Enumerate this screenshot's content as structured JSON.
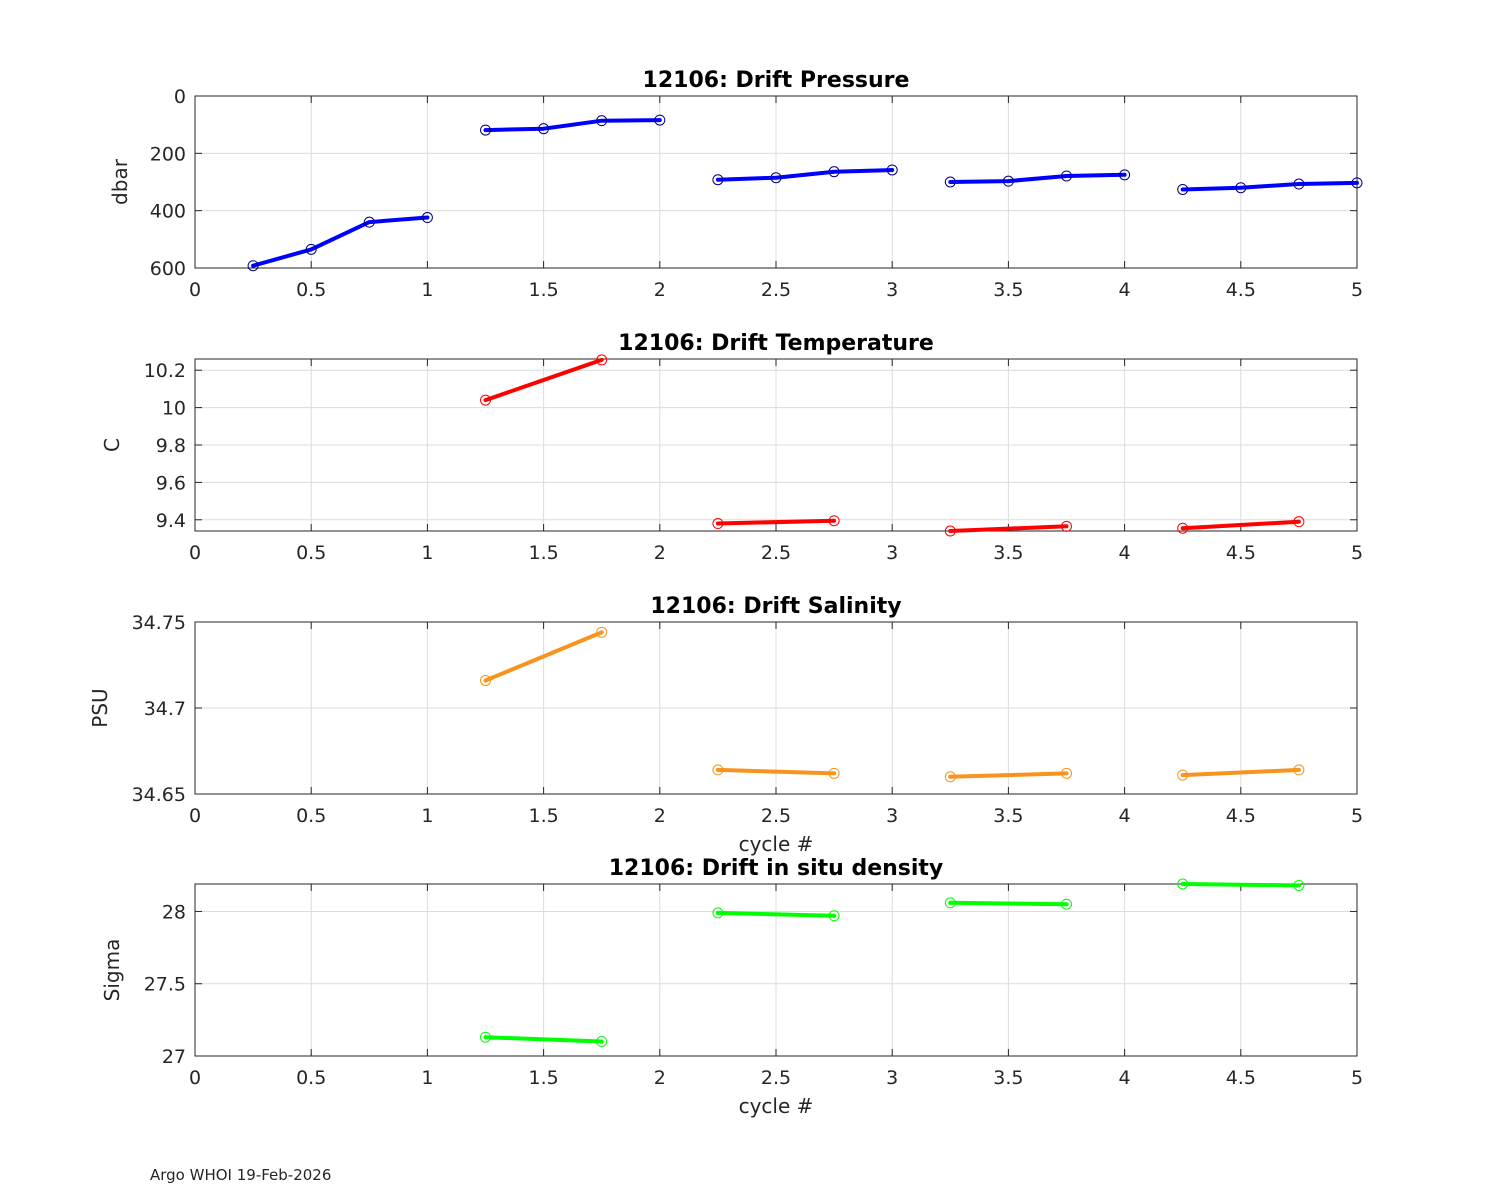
{
  "footer": "Argo WHOI 19-Feb-2026",
  "chart_data": [
    {
      "type": "line",
      "title": "12106: Drift Pressure",
      "xlabel": "",
      "ylabel": "dbar",
      "xlim": [
        0,
        5
      ],
      "ylim": [
        0,
        600
      ],
      "y_reversed": true,
      "grid": true,
      "color": "#0000ff",
      "xticks": [
        "0",
        "0.5",
        "1",
        "1.5",
        "2",
        "2.5",
        "3",
        "3.5",
        "4",
        "4.5",
        "5"
      ],
      "yticks": [
        "0",
        "200",
        "400",
        "600"
      ],
      "ytick_values": [
        0,
        200,
        400,
        600
      ],
      "segments": [
        {
          "x": [
            0.25,
            0.5,
            0.75,
            1.0
          ],
          "y": [
            592,
            535,
            440,
            424
          ]
        },
        {
          "x": [
            1.25,
            1.5,
            1.75,
            2.0
          ],
          "y": [
            119,
            114,
            86,
            84
          ]
        },
        {
          "x": [
            2.25,
            2.5,
            2.75,
            3.0
          ],
          "y": [
            292,
            285,
            264,
            258
          ]
        },
        {
          "x": [
            3.25,
            3.5,
            3.75,
            4.0
          ],
          "y": [
            300,
            297,
            279,
            275
          ]
        },
        {
          "x": [
            4.25,
            4.5,
            4.75,
            5.0
          ],
          "y": [
            326,
            320,
            307,
            303
          ]
        }
      ]
    },
    {
      "type": "line",
      "title": "12106: Drift Temperature",
      "xlabel": "",
      "ylabel": "C",
      "xlim": [
        0,
        5
      ],
      "ylim": [
        9.34,
        10.26
      ],
      "y_reversed": false,
      "grid": true,
      "color": "#ff0000",
      "xticks": [
        "0",
        "0.5",
        "1",
        "1.5",
        "2",
        "2.5",
        "3",
        "3.5",
        "4",
        "4.5",
        "5"
      ],
      "yticks": [
        "9.4",
        "9.6",
        "9.8",
        "10",
        "10.2"
      ],
      "ytick_values": [
        9.4,
        9.6,
        9.8,
        10.0,
        10.2
      ],
      "segments": [
        {
          "x": [
            1.25,
            1.75
          ],
          "y": [
            10.04,
            10.255
          ]
        },
        {
          "x": [
            2.25,
            2.75
          ],
          "y": [
            9.38,
            9.395
          ]
        },
        {
          "x": [
            3.25,
            3.75
          ],
          "y": [
            9.34,
            9.365
          ]
        },
        {
          "x": [
            4.25,
            4.75
          ],
          "y": [
            9.355,
            9.39
          ]
        }
      ]
    },
    {
      "type": "line",
      "title": "12106: Drift Salinity",
      "xlabel": "cycle #",
      "ylabel": "PSU",
      "xlim": [
        0,
        5
      ],
      "ylim": [
        34.65,
        34.75
      ],
      "y_reversed": false,
      "grid": true,
      "color": "#f7941d",
      "xticks": [
        "0",
        "0.5",
        "1",
        "1.5",
        "2",
        "2.5",
        "3",
        "3.5",
        "4",
        "4.5",
        "5"
      ],
      "yticks": [
        "34.65",
        "34.7",
        "34.75"
      ],
      "ytick_values": [
        34.65,
        34.7,
        34.75
      ],
      "segments": [
        {
          "x": [
            1.25,
            1.75
          ],
          "y": [
            34.716,
            34.744
          ]
        },
        {
          "x": [
            2.25,
            2.75
          ],
          "y": [
            34.664,
            34.662
          ]
        },
        {
          "x": [
            3.25,
            3.75
          ],
          "y": [
            34.66,
            34.662
          ]
        },
        {
          "x": [
            4.25,
            4.75
          ],
          "y": [
            34.661,
            34.664
          ]
        }
      ]
    },
    {
      "type": "line",
      "title": "12106: Drift in situ density",
      "xlabel": "cycle #",
      "ylabel": "Sigma",
      "xlim": [
        0,
        5
      ],
      "ylim": [
        27.0,
        28.19
      ],
      "y_reversed": false,
      "grid": true,
      "color": "#00ff00",
      "xticks": [
        "0",
        "0.5",
        "1",
        "1.5",
        "2",
        "2.5",
        "3",
        "3.5",
        "4",
        "4.5",
        "5"
      ],
      "yticks": [
        "27",
        "27.5",
        "28"
      ],
      "ytick_values": [
        27.0,
        27.5,
        28.0
      ],
      "segments": [
        {
          "x": [
            1.25,
            1.75
          ],
          "y": [
            27.13,
            27.1
          ]
        },
        {
          "x": [
            2.25,
            2.75
          ],
          "y": [
            27.99,
            27.97
          ]
        },
        {
          "x": [
            3.25,
            3.75
          ],
          "y": [
            28.06,
            28.05
          ]
        },
        {
          "x": [
            4.25,
            4.75
          ],
          "y": [
            28.19,
            28.18
          ]
        }
      ]
    }
  ]
}
